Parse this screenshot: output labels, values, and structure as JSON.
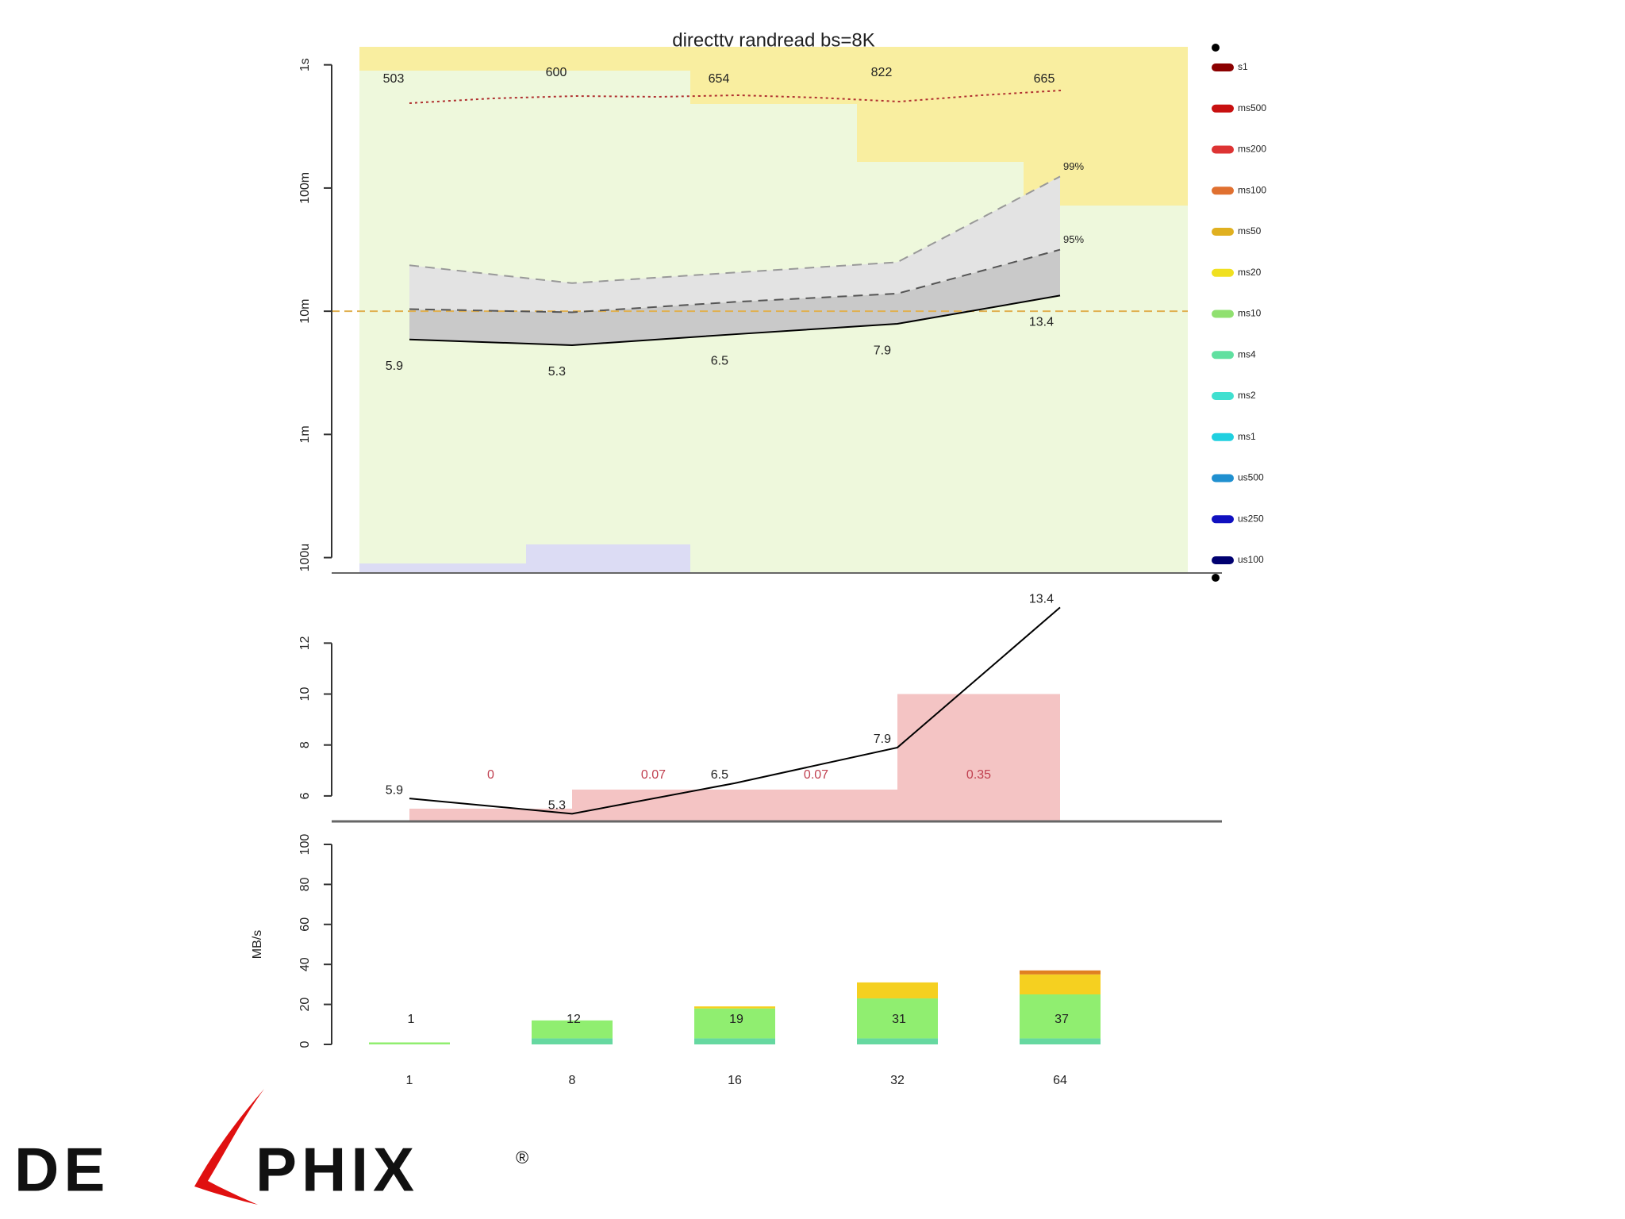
{
  "chart_data": [
    {
      "type": "line",
      "title": "directtv randread bs=8K",
      "log_scale": true,
      "ylim": [
        0.075,
        1400
      ],
      "yticks": [
        {
          "value": 1000,
          "label": "1s"
        },
        {
          "value": 100,
          "label": "100m"
        },
        {
          "value": 10,
          "label": "10m"
        },
        {
          "value": 1,
          "label": "1m"
        },
        {
          "value": 0.1,
          "label": "100u"
        }
      ],
      "series": [
        {
          "color": "#000000",
          "style": "solid",
          "values": [
            5.9,
            5.3,
            6.5,
            7.9,
            13.4
          ]
        },
        {
          "color": "#555555",
          "style": "dashed",
          "end_label": "95%",
          "values": [
            10.4,
            9.8,
            11.9,
            13.9,
            31.6
          ]
        },
        {
          "color": "#999999",
          "style": "dashed",
          "end_label": "99%",
          "values": [
            23.6,
            16.9,
            20.6,
            25,
            124
          ]
        }
      ],
      "band_colors": [
        "#c9c9c9",
        "#e3e3e3"
      ],
      "reference_line": {
        "value": 10,
        "color": "#e0b050"
      },
      "annotations": [
        503,
        600,
        654,
        822,
        665
      ],
      "legend": [
        {
          "name": "s1",
          "color": "#8b0000"
        },
        {
          "name": "ms500",
          "color": "#c81010"
        },
        {
          "name": "ms200",
          "color": "#dd3333"
        },
        {
          "name": "ms100",
          "color": "#e07030"
        },
        {
          "name": "ms50",
          "color": "#e0b020"
        },
        {
          "name": "ms20",
          "color": "#f0e020"
        },
        {
          "name": "ms10",
          "color": "#90e070"
        },
        {
          "name": "ms4",
          "color": "#60e0a0"
        },
        {
          "name": "ms2",
          "color": "#40e0d0"
        },
        {
          "name": "ms1",
          "color": "#20d0e0"
        },
        {
          "name": "us500",
          "color": "#2090d0"
        },
        {
          "name": "us250",
          "color": "#1010c0"
        },
        {
          "name": "us100",
          "color": "#000070"
        }
      ]
    },
    {
      "type": "line",
      "ylim": [
        5,
        13.6
      ],
      "yticks": [
        6,
        8,
        10,
        12
      ],
      "series": [
        {
          "color": "#000000",
          "style": "solid",
          "values": [
            5.9,
            5.3,
            6.5,
            7.9,
            13.4
          ]
        }
      ],
      "bars": {
        "color": "#f4c4c4",
        "values": [
          5.5,
          6.25,
          6.25,
          10
        ]
      },
      "bar_labels": {
        "color": "#c04050",
        "values": [
          0,
          0.07,
          0.07,
          0.35
        ]
      }
    },
    {
      "type": "bar",
      "ylabel": "MB/s",
      "ylim": [
        0,
        100
      ],
      "yticks": [
        0,
        20,
        40,
        60,
        80,
        100
      ],
      "categories": [
        "1",
        "8",
        "16",
        "32",
        "64"
      ],
      "series": [
        {
          "color": "#66d8a0",
          "values": [
            0,
            3,
            3,
            3,
            3
          ]
        },
        {
          "color": "#90ee70",
          "values": [
            1,
            9,
            15,
            20,
            22
          ]
        },
        {
          "color": "#f5d020",
          "values": [
            0,
            0,
            1,
            8,
            10
          ]
        },
        {
          "color": "#e08020",
          "values": [
            0,
            0,
            0,
            0,
            2
          ]
        }
      ],
      "totals": [
        1,
        12,
        19,
        31,
        37
      ]
    }
  ],
  "logo": {
    "left": "DE",
    "right": "PHIX",
    "mark": "®"
  }
}
